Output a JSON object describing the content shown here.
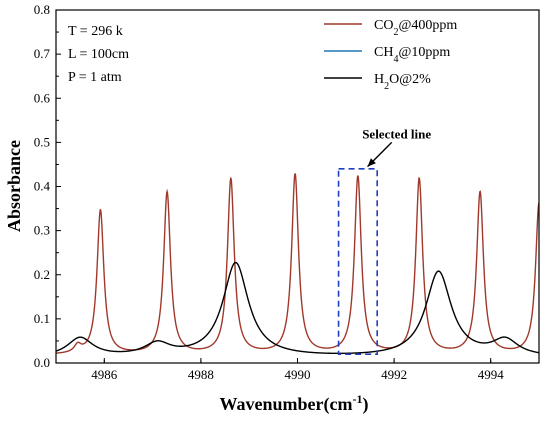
{
  "chart_data": {
    "type": "line",
    "xlabel": "Wavenumber(cm",
    "xlabel_sup": "-1",
    "xlabel_close": ")",
    "ylabel": "Absorbance",
    "xlim": [
      4985,
      4995
    ],
    "ylim": [
      0,
      0.8
    ],
    "x_ticks": [
      4986,
      4988,
      4990,
      4992,
      4994
    ],
    "y_ticks": [
      0.0,
      0.1,
      0.2,
      0.3,
      0.4,
      0.5,
      0.6,
      0.7,
      0.8
    ],
    "conditions": [
      "T = 296 k",
      "L = 100cm",
      "P = 1 atm"
    ],
    "legend_position": "top-right",
    "series": [
      {
        "name": "CO2@400ppm",
        "name_base": "CO",
        "name_sub": "2",
        "name_rest": "@400ppm",
        "color": "#a0392b",
        "baseline": 0.018,
        "hwhm": 0.085,
        "peaks": [
          [
            4985.45,
            0.035
          ],
          [
            4985.92,
            0.345
          ],
          [
            4987.3,
            0.385
          ],
          [
            4988.62,
            0.415
          ],
          [
            4989.95,
            0.425
          ],
          [
            4991.25,
            0.42
          ],
          [
            4992.52,
            0.415
          ],
          [
            4993.78,
            0.385
          ],
          [
            4995.0,
            0.36
          ]
        ]
      },
      {
        "name": "CH4@10ppm",
        "name_base": "CH",
        "name_sub": "4",
        "name_rest": "@10ppm",
        "color": "#1f77b4",
        "baseline": 0.0,
        "hwhm": 0.08,
        "peaks": []
      },
      {
        "name": "H2O@2%",
        "name_base": "H",
        "name_sub": "2",
        "name_rest": "O@2%",
        "color": "#000000",
        "baseline": 0.012,
        "hwhm": 0.32,
        "peaks": [
          [
            4985.5,
            0.055
          ],
          [
            4987.1,
            0.04
          ],
          [
            4988.72,
            0.225
          ],
          [
            4992.92,
            0.205
          ],
          [
            4994.3,
            0.048
          ]
        ]
      }
    ],
    "annotation": {
      "text": "Selected line",
      "box_x": [
        4990.85,
        4991.65
      ],
      "box_y": [
        0.02,
        0.44
      ],
      "arrow_from": [
        4991.95,
        0.5
      ],
      "arrow_to": [
        4991.45,
        0.445
      ],
      "box_color": "#1f3fbf"
    }
  }
}
